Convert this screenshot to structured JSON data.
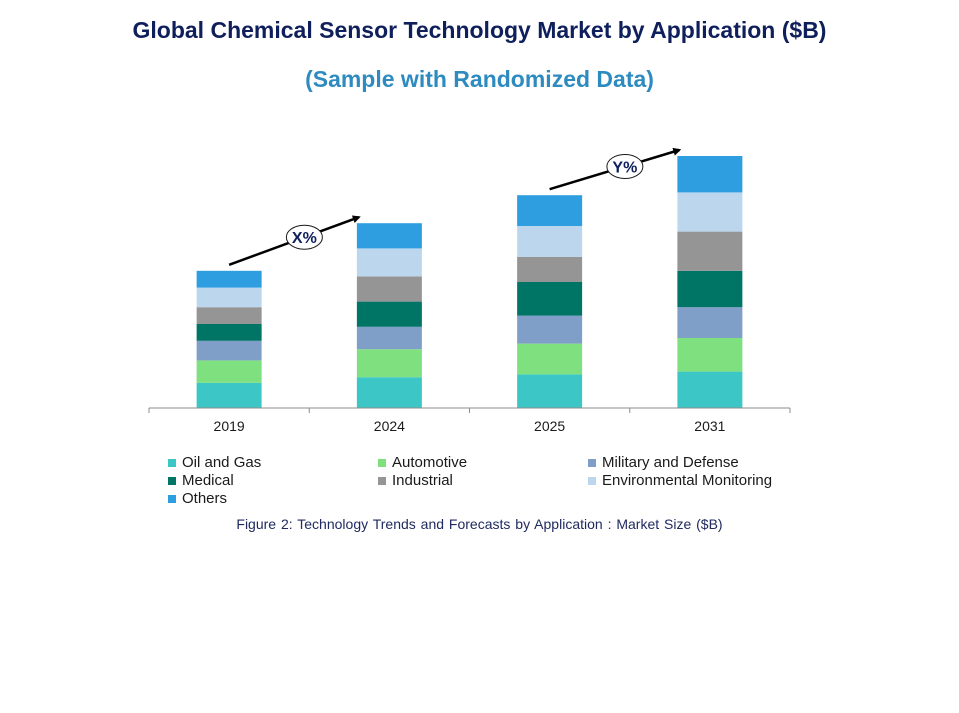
{
  "title": "Global Chemical Sensor Technology Market by Application ($B)",
  "subtitle": "(Sample with Randomized Data)",
  "caption": "Figure 2: Technology  Trends  and Forecasts by Application : Market Size ($B)",
  "annotations": [
    {
      "label": "X%",
      "from": "2019",
      "to": "2024"
    },
    {
      "label": "Y%",
      "from": "2025",
      "to": "2031"
    }
  ],
  "chart_data": {
    "type": "bar",
    "stacked": true,
    "categories": [
      "2019",
      "2024",
      "2025",
      "2031"
    ],
    "ylim": [
      0,
      10
    ],
    "grid": false,
    "legend_position": "bottom",
    "series": [
      {
        "name": "Oil and Gas",
        "color": "#3cc7c6",
        "values": [
          0.9,
          1.1,
          1.2,
          1.3
        ]
      },
      {
        "name": "Automotive",
        "color": "#7ee07e",
        "values": [
          0.8,
          1.0,
          1.1,
          1.2
        ]
      },
      {
        "name": "Military and Defense",
        "color": "#7f9fc9",
        "values": [
          0.7,
          0.8,
          1.0,
          1.1
        ]
      },
      {
        "name": "Medical",
        "color": "#007566",
        "values": [
          0.6,
          0.9,
          1.2,
          1.3
        ]
      },
      {
        "name": "Industrial",
        "color": "#959595",
        "values": [
          0.6,
          0.9,
          0.9,
          1.4
        ]
      },
      {
        "name": "Environmental Monitoring",
        "color": "#bcd6ee",
        "values": [
          0.7,
          1.0,
          1.1,
          1.4
        ]
      },
      {
        "name": "Others",
        "color": "#2f9ee0",
        "values": [
          0.6,
          0.9,
          1.1,
          1.3
        ]
      }
    ]
  }
}
